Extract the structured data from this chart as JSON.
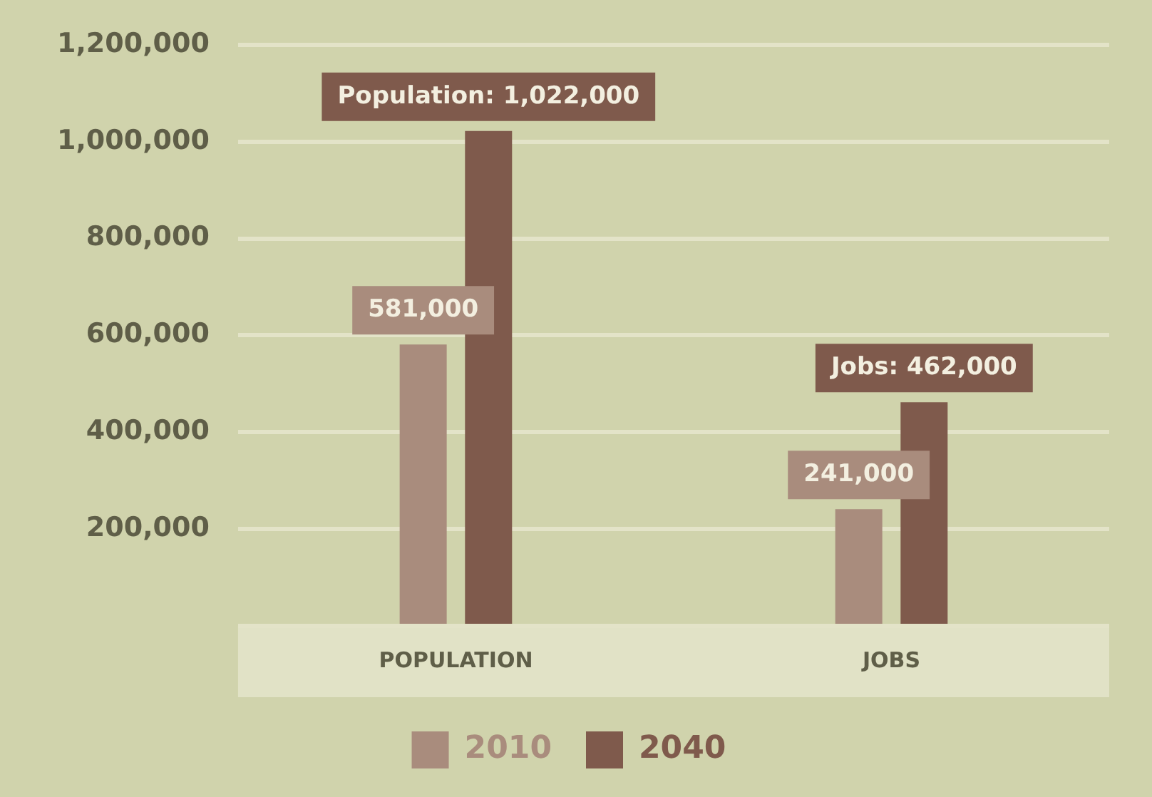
{
  "chart_data": {
    "type": "bar",
    "categories": [
      "POPULATION",
      "JOBS"
    ],
    "series": [
      {
        "name": "2010",
        "color": "#a98c7d",
        "values": [
          581000,
          241000
        ],
        "value_labels": [
          "581,000",
          "241,000"
        ]
      },
      {
        "name": "2040",
        "color": "#7f5a4c",
        "values": [
          1022000,
          462000
        ],
        "value_labels": [
          "Population: 1,022,000",
          "Jobs: 462,000"
        ]
      }
    ],
    "ylim": [
      0,
      1200000
    ],
    "yticks": [
      {
        "value": 0,
        "label": null
      },
      {
        "value": 200000,
        "label": "200,000"
      },
      {
        "value": 400000,
        "label": "400,000"
      },
      {
        "value": 600000,
        "label": "600,000"
      },
      {
        "value": 800000,
        "label": "800,000"
      },
      {
        "value": 1000000,
        "label": "1,000,000"
      },
      {
        "value": 1200000,
        "label": "1,200,000"
      }
    ],
    "grid": "y",
    "legend": "bottom"
  }
}
